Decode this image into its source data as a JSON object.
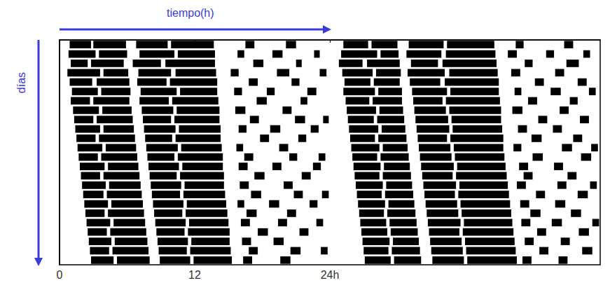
{
  "chart_data": {
    "type": "actogram",
    "xlabel": "tiempo(h)",
    "ylabel": "días",
    "xlim": [
      0,
      48
    ],
    "xticks": [
      0,
      12,
      {
        "value": 24,
        "label": "24h"
      }
    ],
    "ylim": [
      0,
      24
    ],
    "tick_labels": "x",
    "color": "#000000",
    "rows": [
      [
        [
          0.9,
          2.8
        ],
        [
          3.0,
          5.9
        ],
        [
          6.8,
          9.6
        ],
        [
          9.9,
          13.7
        ],
        [
          16.5,
          17.3
        ],
        [
          20.1,
          21.0
        ],
        [
          25.2,
          27.4
        ],
        [
          27.7,
          30.0
        ],
        [
          31.0,
          34.1
        ],
        [
          34.4,
          38.6
        ],
        [
          40.5,
          41.2
        ],
        [
          44.8,
          45.6
        ]
      ],
      [
        [
          0.8,
          3.2
        ],
        [
          3.5,
          6.0
        ],
        [
          7.1,
          10.2
        ],
        [
          10.5,
          13.8
        ],
        [
          15.8,
          16.4
        ],
        [
          18.9,
          19.8
        ],
        [
          22.6,
          23.1
        ],
        [
          25.0,
          28.2
        ],
        [
          28.5,
          30.1
        ],
        [
          30.8,
          33.9
        ],
        [
          34.3,
          38.7
        ],
        [
          39.8,
          40.6
        ],
        [
          43.2,
          43.9
        ],
        [
          46.5,
          47.1
        ]
      ],
      [
        [
          1.0,
          2.5
        ],
        [
          2.8,
          5.7
        ],
        [
          6.5,
          9.0
        ],
        [
          9.4,
          13.8
        ],
        [
          17.2,
          18.1
        ],
        [
          21.0,
          21.5
        ],
        [
          24.8,
          26.9
        ],
        [
          27.3,
          30.2
        ],
        [
          31.2,
          33.6
        ],
        [
          34.0,
          38.8
        ],
        [
          41.3,
          42.0
        ],
        [
          45.0,
          46.1
        ]
      ],
      [
        [
          0.7,
          3.6
        ],
        [
          3.9,
          6.1
        ],
        [
          7.0,
          9.9
        ],
        [
          10.3,
          13.9
        ],
        [
          15.2,
          15.9
        ],
        [
          19.3,
          20.4
        ],
        [
          23.1,
          23.7
        ],
        [
          25.1,
          27.8
        ],
        [
          28.1,
          30.3
        ],
        [
          30.9,
          34.2
        ],
        [
          34.6,
          38.9
        ],
        [
          40.1,
          40.9
        ],
        [
          44.0,
          44.8
        ]
      ],
      [
        [
          0.9,
          2.9
        ],
        [
          3.3,
          6.2
        ],
        [
          6.9,
          9.5
        ],
        [
          9.8,
          14.0
        ],
        [
          16.8,
          17.6
        ],
        [
          20.6,
          21.3
        ],
        [
          25.3,
          27.6
        ],
        [
          27.9,
          30.2
        ],
        [
          31.1,
          33.8
        ],
        [
          34.2,
          39.0
        ],
        [
          42.2,
          43.0
        ],
        [
          46.0,
          46.8
        ]
      ],
      [
        [
          1.1,
          3.4
        ],
        [
          3.7,
          6.3
        ],
        [
          7.2,
          10.4
        ],
        [
          10.7,
          14.0
        ],
        [
          15.5,
          16.2
        ],
        [
          18.4,
          19.1
        ],
        [
          22.0,
          22.8
        ],
        [
          25.2,
          28.0
        ],
        [
          28.3,
          30.4
        ],
        [
          31.3,
          34.4
        ],
        [
          34.7,
          39.0
        ],
        [
          40.4,
          41.0
        ],
        [
          43.6,
          44.5
        ],
        [
          47.0,
          47.6
        ]
      ],
      [
        [
          1.0,
          2.7
        ],
        [
          3.0,
          6.2
        ],
        [
          7.1,
          9.7
        ],
        [
          10.0,
          14.1
        ],
        [
          17.5,
          18.4
        ],
        [
          21.4,
          22.0
        ],
        [
          25.4,
          27.5
        ],
        [
          27.8,
          30.4
        ],
        [
          31.4,
          34.0
        ],
        [
          34.3,
          39.1
        ],
        [
          41.6,
          42.4
        ],
        [
          45.3,
          46.0
        ]
      ],
      [
        [
          1.2,
          3.5
        ],
        [
          3.8,
          6.4
        ],
        [
          7.3,
          10.1
        ],
        [
          10.4,
          14.2
        ],
        [
          15.6,
          16.5
        ],
        [
          19.8,
          20.6
        ],
        [
          25.5,
          28.1
        ],
        [
          28.4,
          30.5
        ],
        [
          31.5,
          34.3
        ],
        [
          34.6,
          39.2
        ],
        [
          40.2,
          41.1
        ],
        [
          44.4,
          45.2
        ]
      ],
      [
        [
          1.3,
          3.0
        ],
        [
          3.3,
          6.5
        ],
        [
          7.4,
          9.9
        ],
        [
          10.2,
          14.2
        ],
        [
          16.9,
          17.7
        ],
        [
          20.9,
          21.8
        ],
        [
          23.4,
          23.9
        ],
        [
          25.6,
          27.9
        ],
        [
          28.2,
          30.6
        ],
        [
          31.6,
          34.5
        ],
        [
          34.8,
          39.2
        ],
        [
          42.5,
          43.3
        ],
        [
          46.2,
          47.0
        ]
      ],
      [
        [
          1.4,
          3.6
        ],
        [
          3.9,
          6.6
        ],
        [
          7.5,
          10.3
        ],
        [
          10.6,
          14.3
        ],
        [
          15.9,
          16.6
        ],
        [
          18.7,
          19.6
        ],
        [
          22.3,
          23.0
        ],
        [
          25.7,
          28.3
        ],
        [
          28.6,
          30.7
        ],
        [
          31.7,
          34.6
        ],
        [
          34.9,
          39.3
        ],
        [
          40.7,
          41.5
        ],
        [
          43.8,
          44.6
        ]
      ],
      [
        [
          1.5,
          3.2
        ],
        [
          3.5,
          6.7
        ],
        [
          7.6,
          10.0
        ],
        [
          10.3,
          14.3
        ],
        [
          17.8,
          18.6
        ],
        [
          21.2,
          21.9
        ],
        [
          25.8,
          28.0
        ],
        [
          28.3,
          30.8
        ],
        [
          31.8,
          34.4
        ],
        [
          34.7,
          39.4
        ],
        [
          41.9,
          42.8
        ],
        [
          45.6,
          46.4
        ]
      ],
      [
        [
          1.6,
          3.8
        ],
        [
          4.1,
          6.8
        ],
        [
          7.7,
          10.5
        ],
        [
          10.8,
          14.4
        ],
        [
          15.7,
          16.3
        ],
        [
          19.5,
          20.3
        ],
        [
          25.9,
          28.4
        ],
        [
          28.7,
          30.9
        ],
        [
          31.9,
          34.7
        ],
        [
          35.0,
          39.4
        ],
        [
          40.3,
          41.0
        ],
        [
          44.6,
          45.5
        ],
        [
          47.2,
          47.8
        ]
      ],
      [
        [
          1.7,
          3.4
        ],
        [
          3.7,
          6.9
        ],
        [
          7.8,
          10.2
        ],
        [
          10.5,
          14.5
        ],
        [
          16.4,
          17.2
        ],
        [
          20.4,
          21.1
        ],
        [
          23.0,
          23.6
        ],
        [
          26.0,
          28.2
        ],
        [
          28.5,
          31.0
        ],
        [
          32.0,
          34.8
        ],
        [
          35.1,
          39.5
        ],
        [
          42.0,
          42.9
        ],
        [
          46.3,
          47.2
        ]
      ],
      [
        [
          1.8,
          4.0
        ],
        [
          4.3,
          7.0
        ],
        [
          7.9,
          10.6
        ],
        [
          10.9,
          14.5
        ],
        [
          15.9,
          16.7
        ],
        [
          18.9,
          19.7
        ],
        [
          22.5,
          23.2
        ],
        [
          26.1,
          28.5
        ],
        [
          28.8,
          31.1
        ],
        [
          32.1,
          35.0
        ],
        [
          35.3,
          39.6
        ],
        [
          40.8,
          41.6
        ],
        [
          43.9,
          44.7
        ]
      ],
      [
        [
          1.9,
          3.6
        ],
        [
          3.9,
          7.1
        ],
        [
          8.0,
          10.4
        ],
        [
          10.7,
          14.6
        ],
        [
          17.3,
          18.2
        ],
        [
          21.5,
          22.3
        ],
        [
          26.2,
          28.4
        ],
        [
          28.7,
          31.2
        ],
        [
          32.2,
          34.9
        ],
        [
          35.2,
          39.7
        ],
        [
          41.2,
          42.0
        ],
        [
          45.1,
          45.9
        ]
      ],
      [
        [
          2.0,
          4.1
        ],
        [
          4.4,
          7.2
        ],
        [
          8.1,
          10.8
        ],
        [
          11.1,
          14.6
        ],
        [
          16.0,
          16.8
        ],
        [
          19.9,
          20.7
        ],
        [
          26.3,
          28.7
        ],
        [
          29.0,
          31.3
        ],
        [
          32.3,
          35.2
        ],
        [
          35.5,
          39.8
        ],
        [
          40.6,
          41.4
        ],
        [
          44.2,
          45.0
        ],
        [
          47.1,
          47.7
        ]
      ],
      [
        [
          2.1,
          3.9
        ],
        [
          4.2,
          7.3
        ],
        [
          8.2,
          10.7
        ],
        [
          11.0,
          14.7
        ],
        [
          17.0,
          17.9
        ],
        [
          20.8,
          21.6
        ],
        [
          23.3,
          23.9
        ],
        [
          26.4,
          28.6
        ],
        [
          28.9,
          31.4
        ],
        [
          32.4,
          35.1
        ],
        [
          35.4,
          39.9
        ],
        [
          42.3,
          43.1
        ],
        [
          46.0,
          46.9
        ]
      ],
      [
        [
          2.2,
          4.3
        ],
        [
          4.6,
          7.4
        ],
        [
          8.3,
          11.0
        ],
        [
          11.3,
          14.8
        ],
        [
          15.8,
          16.4
        ],
        [
          18.6,
          19.5
        ],
        [
          22.2,
          22.9
        ],
        [
          26.5,
          28.9
        ],
        [
          29.2,
          31.5
        ],
        [
          32.5,
          35.3
        ],
        [
          35.6,
          40.0
        ],
        [
          40.9,
          41.7
        ],
        [
          44.0,
          44.9
        ]
      ],
      [
        [
          2.3,
          4.0
        ],
        [
          4.3,
          7.5
        ],
        [
          8.4,
          10.9
        ],
        [
          11.2,
          14.9
        ],
        [
          16.6,
          17.5
        ],
        [
          20.2,
          21.0
        ],
        [
          26.6,
          28.8
        ],
        [
          29.1,
          31.6
        ],
        [
          32.6,
          35.4
        ],
        [
          35.7,
          40.1
        ],
        [
          41.8,
          42.7
        ],
        [
          45.4,
          46.3
        ]
      ],
      [
        [
          2.4,
          4.5
        ],
        [
          4.8,
          7.6
        ],
        [
          8.5,
          11.2
        ],
        [
          11.5,
          15.0
        ],
        [
          16.1,
          16.9
        ],
        [
          19.4,
          20.2
        ],
        [
          22.8,
          23.4
        ],
        [
          26.7,
          29.0
        ],
        [
          29.3,
          31.7
        ],
        [
          32.7,
          35.6
        ],
        [
          35.9,
          40.2
        ],
        [
          41.0,
          41.8
        ],
        [
          43.7,
          44.6
        ],
        [
          47.3,
          47.9
        ]
      ],
      [
        [
          2.5,
          4.2
        ],
        [
          4.5,
          7.7
        ],
        [
          8.6,
          11.1
        ],
        [
          11.4,
          15.1
        ],
        [
          17.6,
          18.5
        ],
        [
          21.3,
          22.1
        ],
        [
          26.8,
          29.1
        ],
        [
          29.4,
          31.8
        ],
        [
          32.8,
          35.5
        ],
        [
          35.8,
          40.3
        ],
        [
          42.4,
          43.2
        ],
        [
          46.1,
          47.0
        ]
      ],
      [
        [
          2.6,
          4.6
        ],
        [
          4.9,
          7.8
        ],
        [
          8.7,
          11.4
        ],
        [
          11.7,
          15.1
        ],
        [
          16.2,
          17.0
        ],
        [
          19.0,
          19.9
        ],
        [
          26.9,
          29.3
        ],
        [
          29.6,
          31.9
        ],
        [
          32.9,
          35.7
        ],
        [
          36.0,
          40.4
        ],
        [
          41.3,
          42.1
        ],
        [
          44.5,
          45.3
        ]
      ],
      [
        [
          2.7,
          4.4
        ],
        [
          4.7,
          7.9
        ],
        [
          8.8,
          11.3
        ],
        [
          11.6,
          15.2
        ],
        [
          16.8,
          17.6
        ],
        [
          20.5,
          21.4
        ],
        [
          23.2,
          23.8
        ],
        [
          27.0,
          29.2
        ],
        [
          29.5,
          32.0
        ],
        [
          33.0,
          35.8
        ],
        [
          36.1,
          40.5
        ],
        [
          42.6,
          43.4
        ],
        [
          46.4,
          47.3
        ]
      ],
      [
        [
          2.8,
          4.8
        ],
        [
          5.1,
          8.0
        ],
        [
          8.9,
          11.6
        ],
        [
          11.9,
          15.3
        ],
        [
          16.3,
          17.1
        ],
        [
          19.6,
          20.5
        ],
        [
          27.1,
          29.4
        ],
        [
          29.7,
          32.1
        ],
        [
          33.1,
          35.9
        ],
        [
          36.2,
          40.6
        ],
        [
          41.1,
          41.9
        ],
        [
          44.3,
          45.1
        ]
      ]
    ]
  }
}
